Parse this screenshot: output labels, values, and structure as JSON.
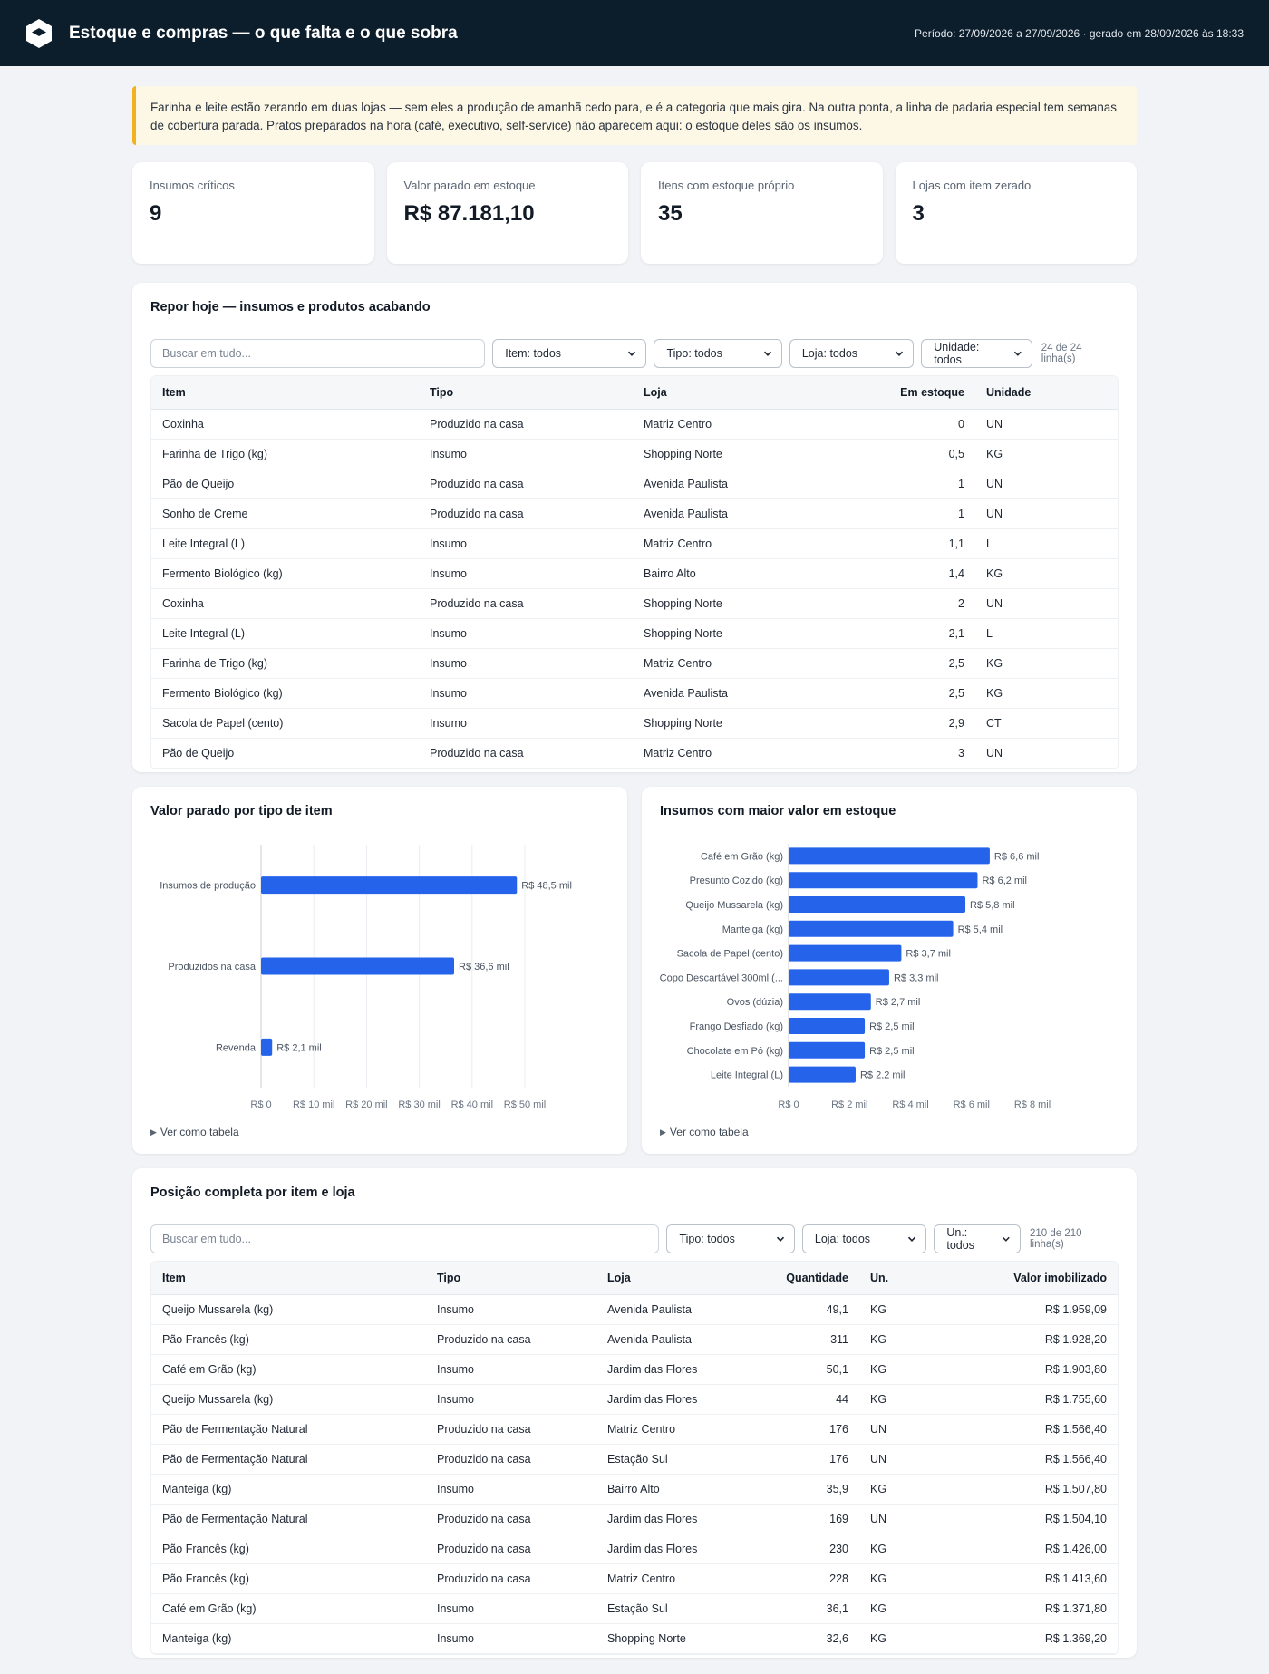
{
  "header": {
    "title": "Estoque e compras — o que falta e o que sobra",
    "period": "Período: 27/09/2026 a 27/09/2026 · gerado em 28/09/2026 às 18:33"
  },
  "note": "Farinha e leite estão zerando em duas lojas — sem eles a produção de amanhã cedo para, e é a categoria que mais gira. Na outra ponta, a linha de padaria especial tem semanas de cobertura parada. Pratos preparados na hora (café, executivo, self-service) não aparecem aqui: o estoque deles são os insumos.",
  "kpis": [
    {
      "label": "Insumos críticos",
      "value": "9"
    },
    {
      "label": "Valor parado em estoque",
      "value": "R$ 87.181,10"
    },
    {
      "label": "Itens com estoque próprio",
      "value": "35"
    },
    {
      "label": "Lojas com item zerado",
      "value": "3"
    }
  ],
  "restock": {
    "title": "Repor hoje — insumos e produtos acabando",
    "search_placeholder": "Buscar em tudo...",
    "filters": [
      "Item: todos",
      "Tipo: todos",
      "Loja: todos",
      "Unidade: todos"
    ],
    "row_count": "24 de 24 linha(s)",
    "columns": [
      "Item",
      "Tipo",
      "Loja",
      "Em estoque",
      "Unidade"
    ],
    "rows": [
      [
        "Coxinha",
        "Produzido na casa",
        "Matriz Centro",
        "0",
        "UN"
      ],
      [
        "Farinha de Trigo (kg)",
        "Insumo",
        "Shopping Norte",
        "0,5",
        "KG"
      ],
      [
        "Pão de Queijo",
        "Produzido na casa",
        "Avenida Paulista",
        "1",
        "UN"
      ],
      [
        "Sonho de Creme",
        "Produzido na casa",
        "Avenida Paulista",
        "1",
        "UN"
      ],
      [
        "Leite Integral (L)",
        "Insumo",
        "Matriz Centro",
        "1,1",
        "L"
      ],
      [
        "Fermento Biológico (kg)",
        "Insumo",
        "Bairro Alto",
        "1,4",
        "KG"
      ],
      [
        "Coxinha",
        "Produzido na casa",
        "Shopping Norte",
        "2",
        "UN"
      ],
      [
        "Leite Integral (L)",
        "Insumo",
        "Shopping Norte",
        "2,1",
        "L"
      ],
      [
        "Farinha de Trigo (kg)",
        "Insumo",
        "Matriz Centro",
        "2,5",
        "KG"
      ],
      [
        "Fermento Biológico (kg)",
        "Insumo",
        "Avenida Paulista",
        "2,5",
        "KG"
      ],
      [
        "Sacola de Papel (cento)",
        "Insumo",
        "Shopping Norte",
        "2,9",
        "CT"
      ],
      [
        "Pão de Queijo",
        "Produzido na casa",
        "Matriz Centro",
        "3",
        "UN"
      ]
    ]
  },
  "chart_type": {
    "title": "Valor parado por tipo de item",
    "toggle": "Ver como tabela",
    "chart_data": {
      "type": "bar",
      "orientation": "horizontal",
      "categories": [
        "Insumos de produção",
        "Produzidos na casa",
        "Revenda"
      ],
      "values": [
        48500,
        36600,
        2100
      ],
      "data_labels": [
        "R$ 48,5 mil",
        "R$ 36,6 mil",
        "R$ 2,1 mil"
      ],
      "xlim": [
        0,
        50000
      ],
      "x_ticks": [
        0,
        10000,
        20000,
        30000,
        40000,
        50000
      ],
      "x_tick_labels": [
        "R$ 0",
        "R$ 10 mil",
        "R$ 20 mil",
        "R$ 30 mil",
        "R$ 40 mil",
        "R$ 50 mil"
      ],
      "grid": true,
      "color": "#2563eb"
    }
  },
  "chart_inputs": {
    "title": "Insumos com maior valor em estoque",
    "toggle": "Ver como tabela",
    "chart_data": {
      "type": "bar",
      "orientation": "horizontal",
      "categories": [
        "Café em Grão (kg)",
        "Presunto Cozido (kg)",
        "Queijo Mussarela (kg)",
        "Manteiga (kg)",
        "Sacola de Papel (cento)",
        "Copo Descartável 300ml (...",
        "Ovos (dúzia)",
        "Frango Desfiado (kg)",
        "Chocolate em Pó (kg)",
        "Leite Integral (L)"
      ],
      "values": [
        6600,
        6200,
        5800,
        5400,
        3700,
        3300,
        2700,
        2500,
        2500,
        2200
      ],
      "data_labels": [
        "R$ 6,6 mil",
        "R$ 6,2 mil",
        "R$ 5,8 mil",
        "R$ 5,4 mil",
        "R$ 3,7 mil",
        "R$ 3,3 mil",
        "R$ 2,7 mil",
        "R$ 2,5 mil",
        "R$ 2,5 mil",
        "R$ 2,2 mil"
      ],
      "xlim": [
        0,
        8000
      ],
      "x_ticks": [
        0,
        2000,
        4000,
        6000,
        8000
      ],
      "x_tick_labels": [
        "R$ 0",
        "R$ 2 mil",
        "R$ 4 mil",
        "R$ 6 mil",
        "R$ 8 mil"
      ],
      "grid": false,
      "color": "#2563eb"
    }
  },
  "positions": {
    "title": "Posição completa por item e loja",
    "search_placeholder": "Buscar em tudo...",
    "filters": [
      "Tipo: todos",
      "Loja: todos",
      "Un.: todos"
    ],
    "row_count": "210 de 210 linha(s)",
    "columns": [
      "Item",
      "Tipo",
      "Loja",
      "Quantidade",
      "Un.",
      "Valor imobilizado"
    ],
    "rows": [
      [
        "Queijo Mussarela (kg)",
        "Insumo",
        "Avenida Paulista",
        "49,1",
        "KG",
        "R$ 1.959,09"
      ],
      [
        "Pão Francês (kg)",
        "Produzido na casa",
        "Avenida Paulista",
        "311",
        "KG",
        "R$ 1.928,20"
      ],
      [
        "Café em Grão (kg)",
        "Insumo",
        "Jardim das Flores",
        "50,1",
        "KG",
        "R$ 1.903,80"
      ],
      [
        "Queijo Mussarela (kg)",
        "Insumo",
        "Jardim das Flores",
        "44",
        "KG",
        "R$ 1.755,60"
      ],
      [
        "Pão de Fermentação Natural",
        "Produzido na casa",
        "Matriz Centro",
        "176",
        "UN",
        "R$ 1.566,40"
      ],
      [
        "Pão de Fermentação Natural",
        "Produzido na casa",
        "Estação Sul",
        "176",
        "UN",
        "R$ 1.566,40"
      ],
      [
        "Manteiga (kg)",
        "Insumo",
        "Bairro Alto",
        "35,9",
        "KG",
        "R$ 1.507,80"
      ],
      [
        "Pão de Fermentação Natural",
        "Produzido na casa",
        "Jardim das Flores",
        "169",
        "UN",
        "R$ 1.504,10"
      ],
      [
        "Pão Francês (kg)",
        "Produzido na casa",
        "Jardim das Flores",
        "230",
        "KG",
        "R$ 1.426,00"
      ],
      [
        "Pão Francês (kg)",
        "Produzido na casa",
        "Matriz Centro",
        "228",
        "KG",
        "R$ 1.413,60"
      ],
      [
        "Café em Grão (kg)",
        "Insumo",
        "Estação Sul",
        "36,1",
        "KG",
        "R$ 1.371,80"
      ],
      [
        "Manteiga (kg)",
        "Insumo",
        "Shopping Norte",
        "32,6",
        "KG",
        "R$ 1.369,20"
      ]
    ]
  }
}
